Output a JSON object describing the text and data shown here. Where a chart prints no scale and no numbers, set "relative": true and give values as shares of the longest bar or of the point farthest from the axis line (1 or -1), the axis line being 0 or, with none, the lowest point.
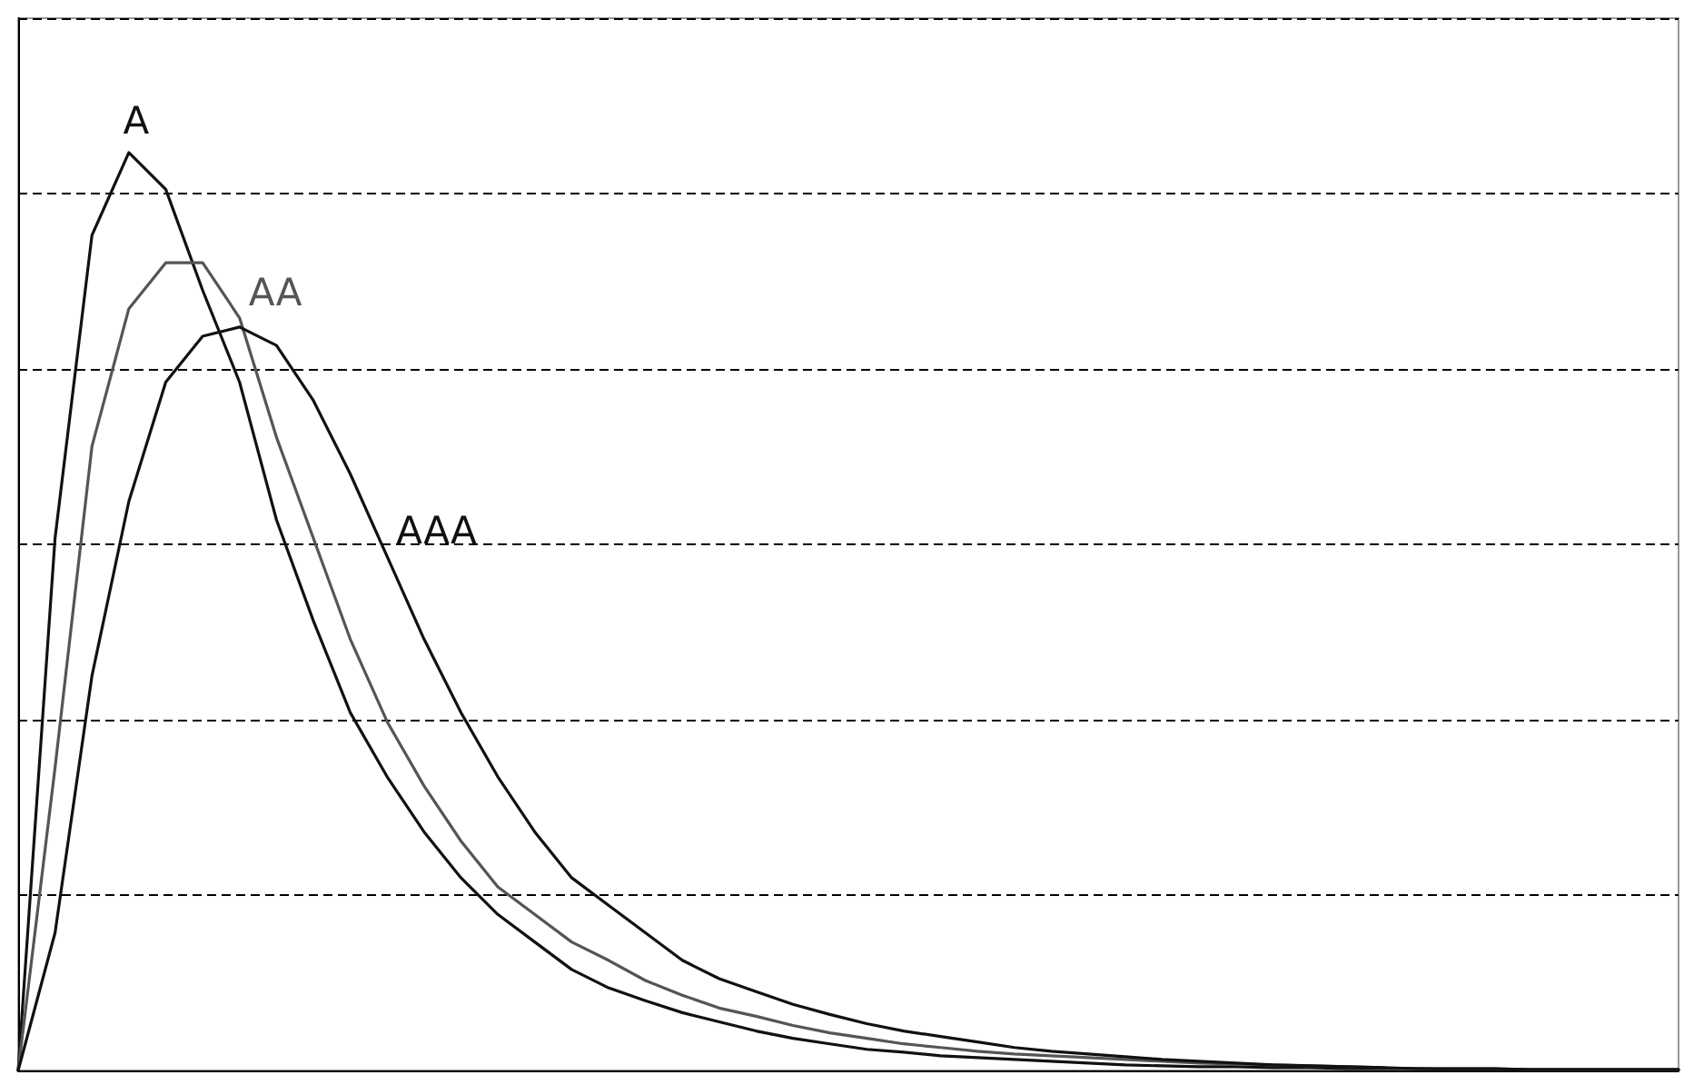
{
  "chart_data": {
    "type": "line",
    "relative": true,
    "grid": "y",
    "legend": false,
    "marker": "none",
    "line_style": "solid",
    "categories": [
      null,
      null,
      null,
      null,
      null,
      null,
      null,
      null,
      null,
      null,
      null,
      null,
      null,
      null,
      null,
      null,
      null,
      null,
      null,
      null,
      null,
      null,
      null,
      null,
      null,
      null,
      null,
      null,
      null,
      null,
      null,
      null,
      null,
      null,
      null,
      null,
      null,
      null,
      null,
      null,
      null,
      null,
      null,
      null,
      null,
      null
    ],
    "series": [
      {
        "name": "A",
        "color": "#111111",
        "values": [
          0,
          0.58,
          0.91,
          1.0,
          0.96,
          0.85,
          0.75,
          0.6,
          0.49,
          0.39,
          0.32,
          0.26,
          0.21,
          0.17,
          0.14,
          0.11,
          0.09,
          0.076,
          0.063,
          0.053,
          0.043,
          0.035,
          0.029,
          0.023,
          0.02,
          0.016,
          0.014,
          0.012,
          0.01,
          0.008,
          0.006,
          0.005,
          0.004,
          0.004,
          0.003,
          0.003,
          0.002,
          0.002,
          0.002,
          0.001,
          0.001,
          0.001,
          0.001,
          0.001,
          0.001,
          0.001
        ]
      },
      {
        "name": "AA",
        "color": "#555555",
        "values": [
          0,
          0.33,
          0.68,
          0.83,
          0.88,
          0.88,
          0.82,
          0.69,
          0.58,
          0.47,
          0.38,
          0.31,
          0.25,
          0.2,
          0.17,
          0.14,
          0.12,
          0.098,
          0.082,
          0.068,
          0.059,
          0.049,
          0.041,
          0.035,
          0.029,
          0.025,
          0.021,
          0.018,
          0.016,
          0.014,
          0.012,
          0.01,
          0.008,
          0.007,
          0.006,
          0.005,
          0.004,
          0.003,
          0.002,
          0.002,
          0.002,
          0.001,
          0.001,
          0.001,
          0.001,
          0.001
        ]
      },
      {
        "name": "AAA",
        "color": "#111111",
        "values": [
          0,
          0.15,
          0.43,
          0.62,
          0.75,
          0.8,
          0.81,
          0.79,
          0.73,
          0.65,
          0.56,
          0.47,
          0.39,
          0.32,
          0.26,
          0.21,
          0.18,
          0.15,
          0.12,
          0.1,
          0.086,
          0.072,
          0.061,
          0.051,
          0.043,
          0.037,
          0.031,
          0.025,
          0.021,
          0.018,
          0.015,
          0.012,
          0.01,
          0.008,
          0.006,
          0.005,
          0.004,
          0.003,
          0.002,
          0.002,
          0.002,
          0.001,
          0.001,
          0.001,
          0.001,
          0.001
        ]
      }
    ]
  }
}
